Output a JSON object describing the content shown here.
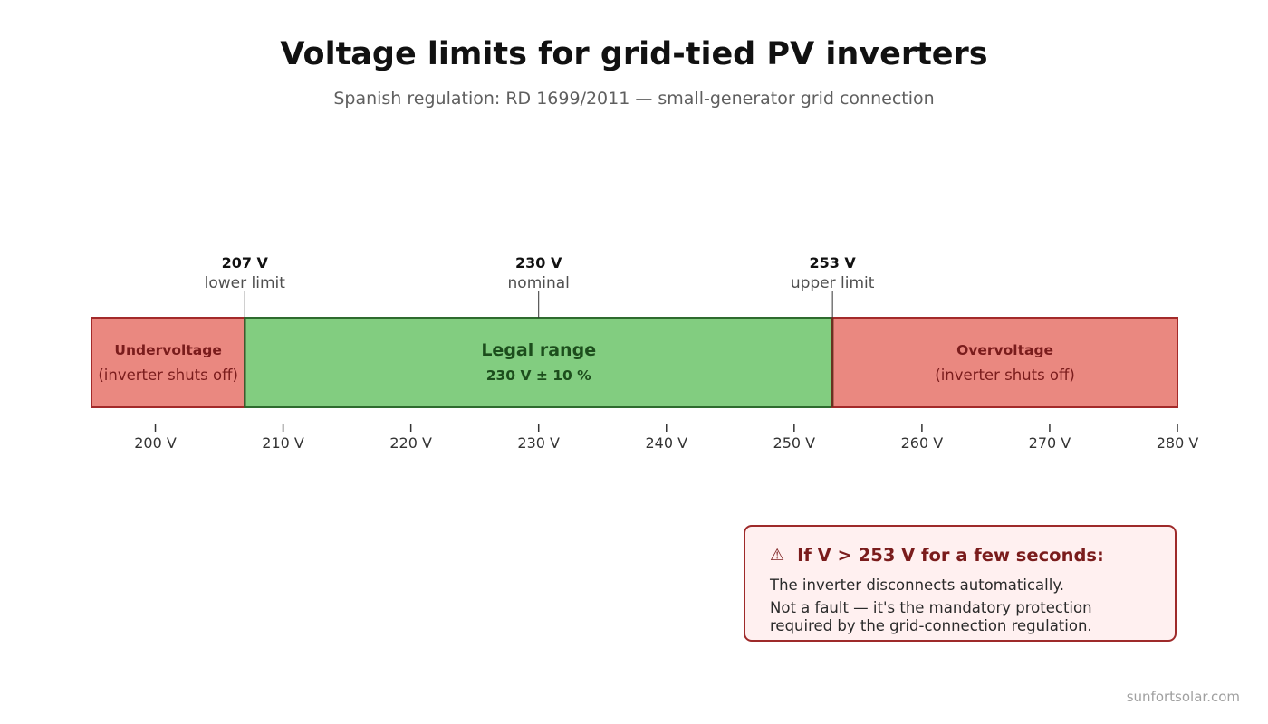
{
  "header": {
    "title": "Voltage limits for grid-tied PV inverters",
    "subtitle": "Spanish regulation: RD 1699/2011 — small-generator grid connection"
  },
  "scale": {
    "min": 195,
    "max": 280,
    "ticks": [
      200,
      210,
      220,
      230,
      240,
      250,
      260,
      270,
      280
    ],
    "tick_format": "{v} V"
  },
  "zones": [
    {
      "id": "under",
      "from": 195,
      "to": 207,
      "title": "Undervoltage",
      "subtitle": "(inverter shuts off)",
      "fill": "#ea8880",
      "stroke": "#a32a2a",
      "text_color": "#7a1c1c"
    },
    {
      "id": "legal",
      "from": 207,
      "to": 253,
      "title": "Legal range",
      "subtitle": "230 V ± 10 %",
      "fill": "#82cd80",
      "stroke": "#2e6b2e",
      "text_color": "#1c4d1c"
    },
    {
      "id": "over",
      "from": 253,
      "to": 280,
      "title": "Overvoltage",
      "subtitle": "(inverter shuts off)",
      "fill": "#ea8880",
      "stroke": "#a32a2a",
      "text_color": "#7a1c1c"
    }
  ],
  "markers": [
    {
      "value": 207,
      "label": "207 V",
      "caption": "lower limit"
    },
    {
      "value": 230,
      "label": "230 V",
      "caption": "nominal"
    },
    {
      "value": 253,
      "label": "253 V",
      "caption": "upper limit"
    }
  ],
  "warning": {
    "icon": "warning-triangle-icon",
    "icon_glyph": "⚠",
    "title": "If V > 253 V for a few seconds:",
    "line1": "The inverter disconnects automatically.",
    "line2": "Not a fault — it's the mandatory protection",
    "line3": "required by the grid-connection regulation."
  },
  "footer": {
    "credit": "sunfortsolar.com"
  }
}
